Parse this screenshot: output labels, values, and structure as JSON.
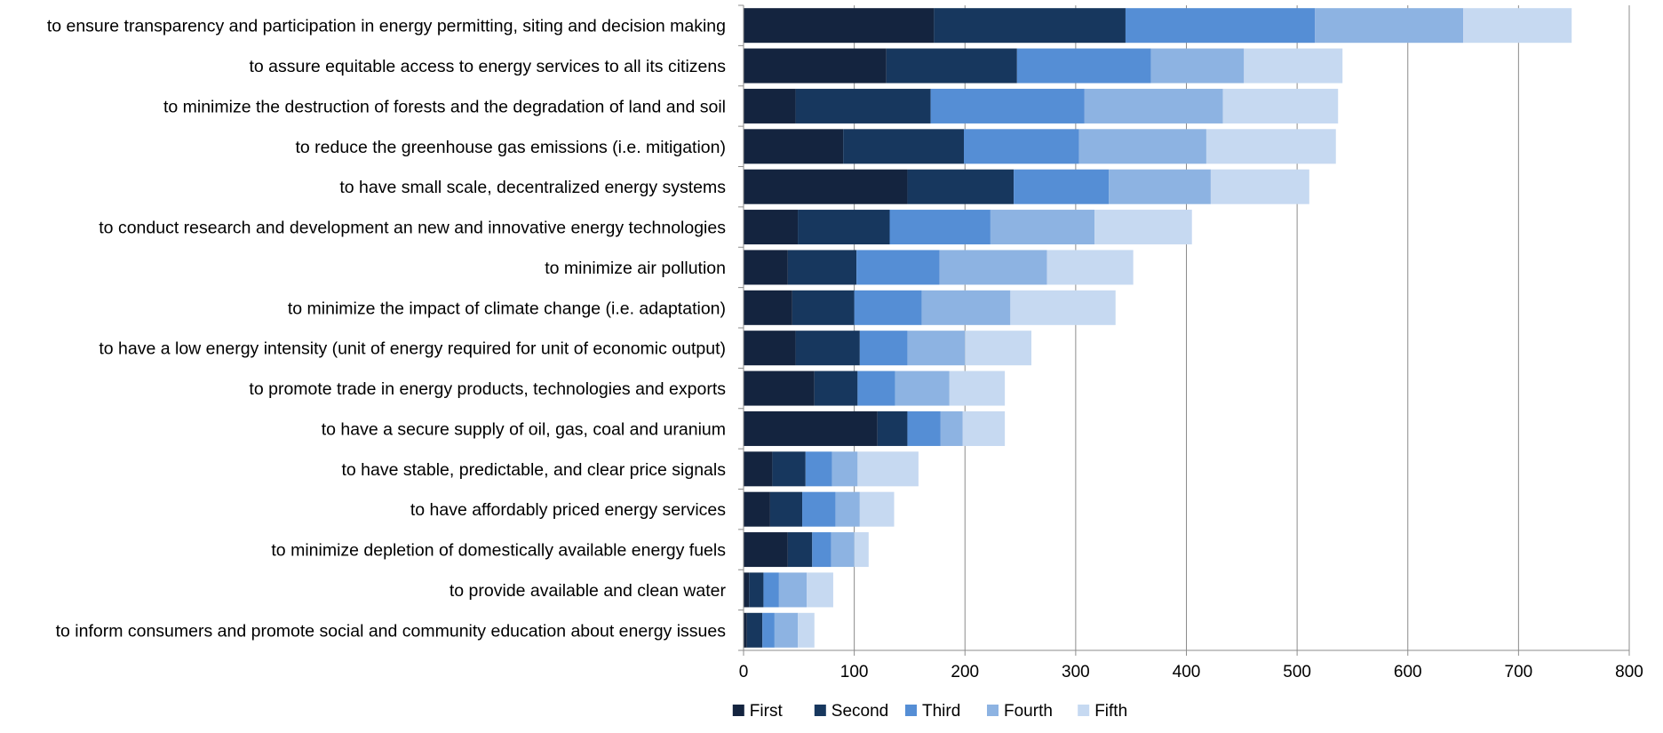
{
  "chart_data": {
    "type": "bar",
    "orientation": "horizontal",
    "stacked": true,
    "title": "",
    "xlabel": "",
    "ylabel": "",
    "xlim": [
      0,
      800
    ],
    "xticks": [
      0,
      100,
      200,
      300,
      400,
      500,
      600,
      700,
      800
    ],
    "grid": "vertical",
    "legend_position": "bottom",
    "categories": [
      "to ensure transparency and participation in energy permitting, siting and decision making",
      "to assure equitable access to energy services to all its citizens",
      "to minimize the destruction of forests and the degradation of land and soil",
      "to reduce the greenhouse gas emissions (i.e. mitigation)",
      "to have small scale, decentralized energy systems",
      "to conduct research and development an new and innovative energy technologies",
      "to minimize air pollution",
      "to minimize the impact of climate change (i.e. adaptation)",
      "to have a low energy intensity (unit of energy required for unit of economic output)",
      "to promote trade in energy products, technologies and exports",
      "to have a secure supply of oil, gas, coal and uranium",
      "to have stable, predictable, and clear price signals",
      "to have affordably priced energy services",
      "to minimize depletion of domestically available energy fuels",
      "to provide available and clean water",
      "to inform consumers and promote social and community education about energy issues"
    ],
    "series": [
      {
        "name": "First",
        "color": "#14243f",
        "values": [
          172,
          129,
          47,
          90,
          148,
          49,
          40,
          44,
          47,
          64,
          121,
          26,
          24,
          40,
          5,
          3
        ]
      },
      {
        "name": "Second",
        "color": "#17375e",
        "values": [
          173,
          118,
          122,
          109,
          96,
          83,
          62,
          56,
          58,
          39,
          27,
          30,
          29,
          22,
          13,
          14
        ]
      },
      {
        "name": "Third",
        "color": "#558ed5",
        "values": [
          171,
          121,
          139,
          104,
          86,
          91,
          75,
          61,
          43,
          34,
          30,
          24,
          30,
          17,
          14,
          11
        ]
      },
      {
        "name": "Fourth",
        "color": "#8db3e2",
        "values": [
          134,
          84,
          125,
          115,
          92,
          94,
          97,
          80,
          52,
          49,
          20,
          23,
          22,
          21,
          25,
          21
        ]
      },
      {
        "name": "Fifth",
        "color": "#c6d9f1",
        "values": [
          98,
          89,
          104,
          117,
          89,
          88,
          78,
          95,
          60,
          50,
          38,
          55,
          31,
          13,
          24,
          15
        ]
      }
    ]
  }
}
